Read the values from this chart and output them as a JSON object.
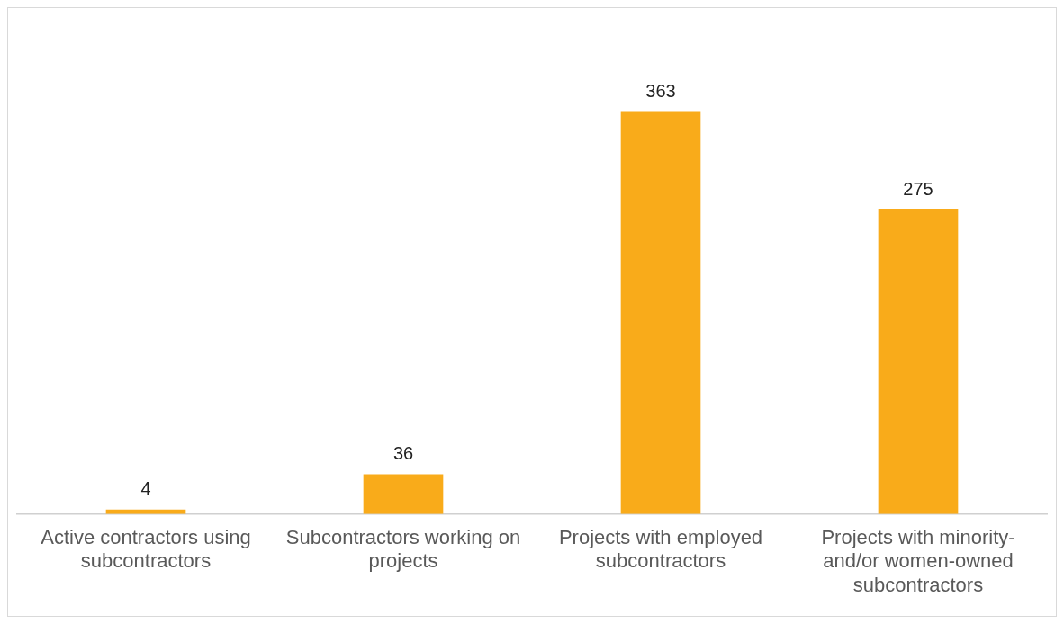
{
  "chart_data": {
    "type": "bar",
    "categories": [
      "Active contractors using subcontractors",
      "Subcontractors working on projects",
      "Projects with employed subcontractors",
      "Projects with minority- and/or women-owned subcontractors"
    ],
    "values": [
      4,
      36,
      363,
      275
    ],
    "color": "#f9ab1a",
    "data_labels": true,
    "grid": false,
    "legend": false
  }
}
